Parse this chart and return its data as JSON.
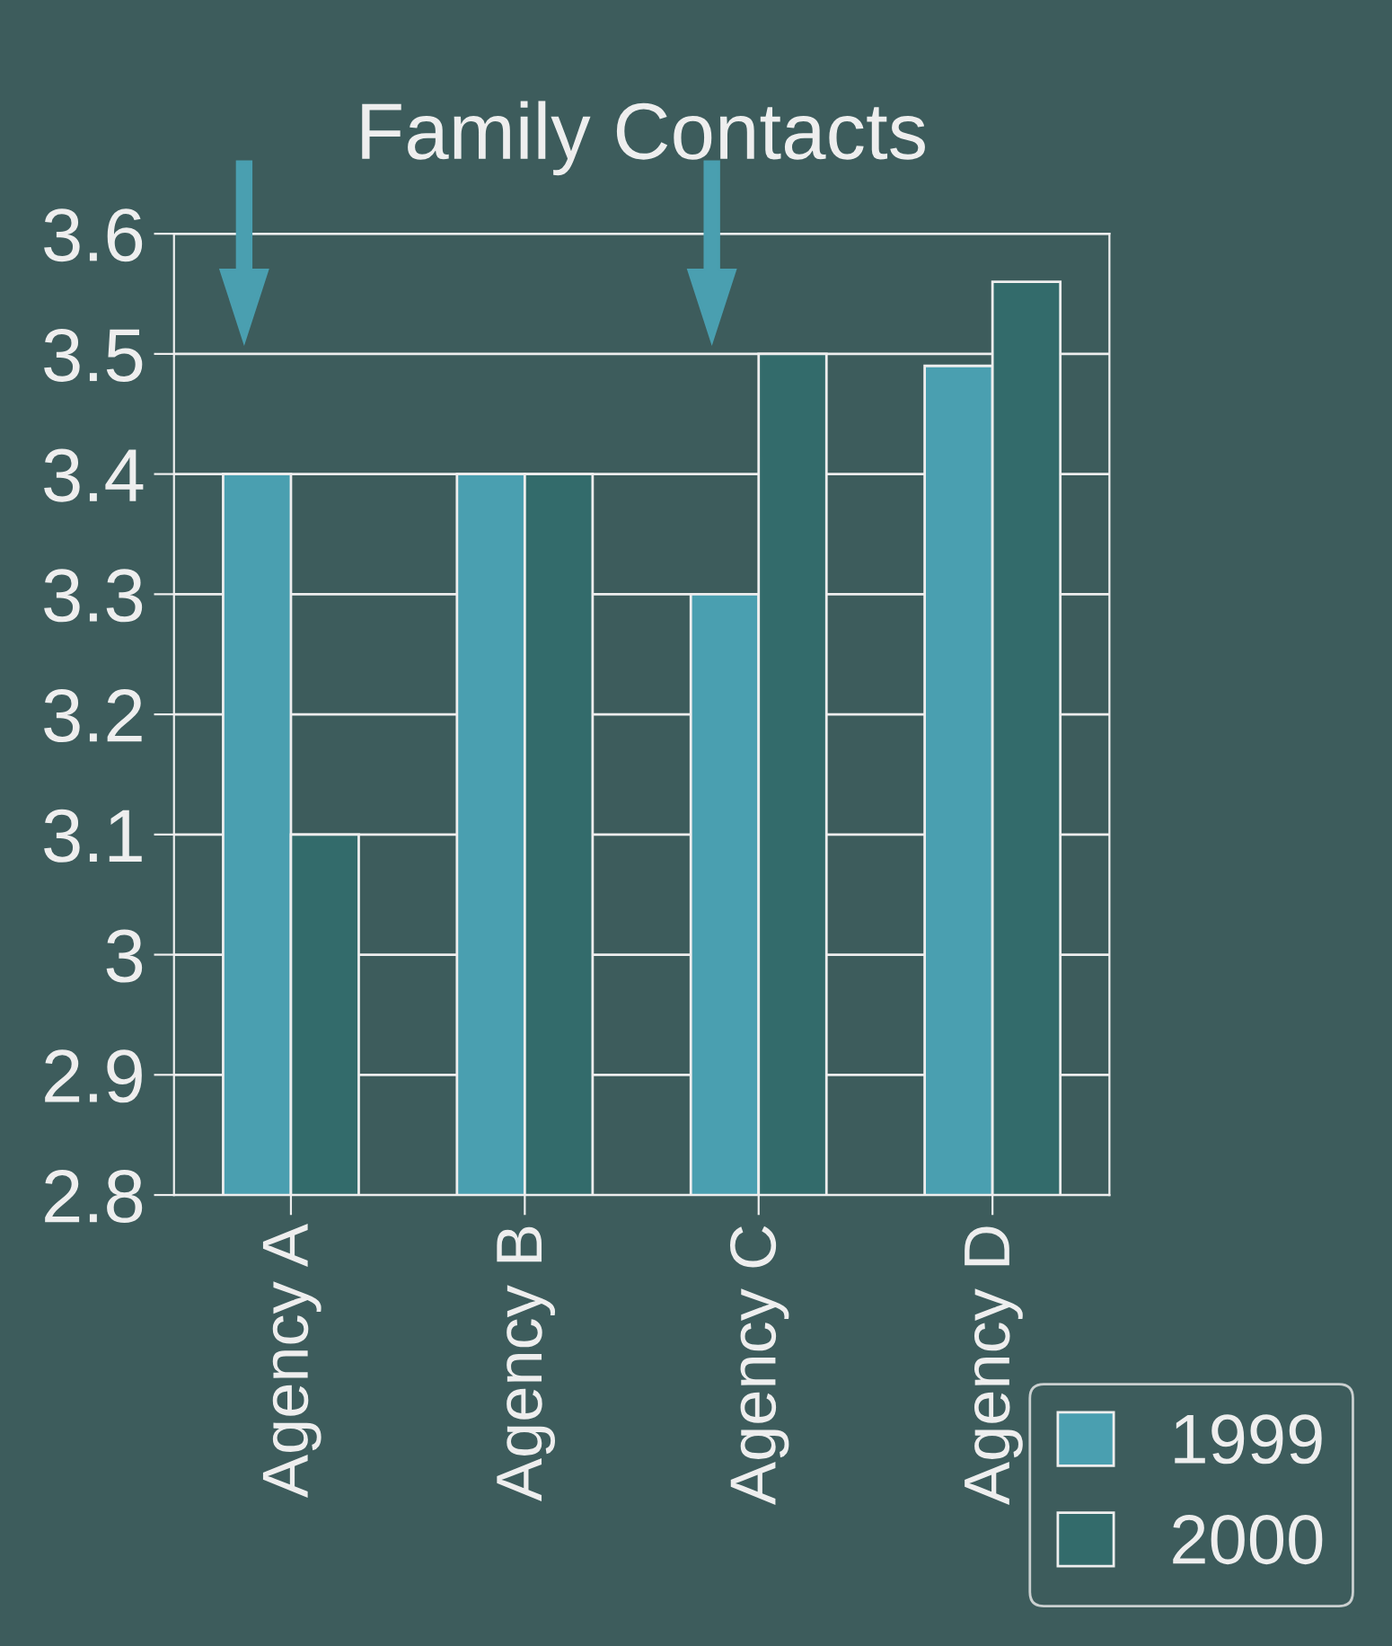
{
  "chart_data": {
    "type": "bar",
    "title": "Family Contacts",
    "categories": [
      "Agency A",
      "Agency B",
      "Agency C",
      "Agency D"
    ],
    "series": [
      {
        "name": "1999",
        "color": "#4a9fb0",
        "values": [
          3.4,
          3.4,
          3.3,
          3.49
        ]
      },
      {
        "name": "2000",
        "color": "#336b6b",
        "values": [
          3.1,
          3.4,
          3.5,
          3.56
        ]
      }
    ],
    "ylim": [
      2.8,
      3.6
    ],
    "yticks": [
      2.8,
      2.9,
      3,
      3.1,
      3.2,
      3.3,
      3.4,
      3.5,
      3.6
    ],
    "grid": "y",
    "legend": "bottom right"
  }
}
